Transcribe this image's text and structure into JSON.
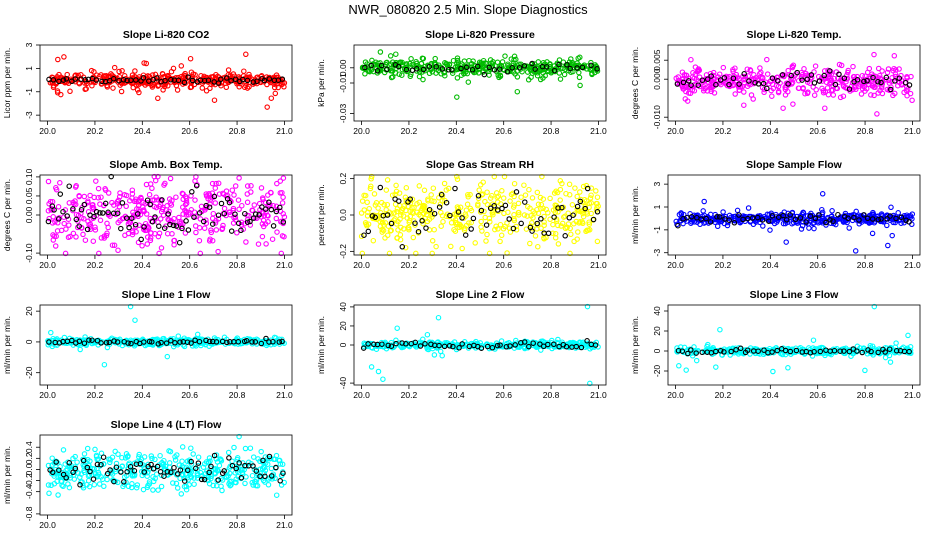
{
  "page": {
    "title": "NWR_080820  2.5 Min. Slope Diagnostics"
  },
  "chart_data": [
    {
      "type": "scatter",
      "title": "Slope Li-820 CO2",
      "ylabel": "Licor ppm per min.",
      "xlim": [
        20.0,
        21.0
      ],
      "ylim": [
        -3.5,
        3.0
      ],
      "x_ticks": [
        "20.0",
        "20.2",
        "20.4",
        "20.6",
        "20.8",
        "21.0"
      ],
      "y_ticks": [
        {
          "v": -3,
          "label": "-3"
        },
        {
          "v": -1,
          "label": "-1"
        },
        {
          "v": 1,
          "label": "1"
        },
        {
          "v": 3,
          "label": "3"
        }
      ],
      "color": "#ff0000",
      "sim": {
        "n": 420,
        "main_sd": 0.28,
        "main_off": 0.0,
        "out_frac": 0.12,
        "out_sd": 1.0,
        "out_off": 0.0,
        "black_n": 55,
        "black_sd": 0.12,
        "black_off": 0.0,
        "seed": 11
      }
    },
    {
      "type": "scatter",
      "title": "Slope Li-820 Pressure",
      "ylabel": "kPa per min.",
      "xlim": [
        20.0,
        21.0
      ],
      "ylim": [
        -0.035,
        0.015
      ],
      "x_ticks": [
        "20.0",
        "20.2",
        "20.4",
        "20.6",
        "20.8",
        "21.0"
      ],
      "y_ticks": [
        {
          "v": -0.03,
          "label": "-0.03"
        },
        {
          "v": -0.01,
          "label": "-0.01"
        },
        {
          "v": 0.0,
          "label": "0.00"
        }
      ],
      "color": "#00bb00",
      "sim": {
        "n": 380,
        "main_sd": 0.0025,
        "main_off": 0.0,
        "out_frac": 0.1,
        "out_sd": 0.007,
        "out_off": 0.0,
        "black_n": 40,
        "black_sd": 0.0015,
        "black_off": 0.0,
        "seed": 23
      }
    },
    {
      "type": "scatter",
      "title": "Slope Li-820 Temp.",
      "ylabel": "degrees C per min.",
      "xlim": [
        20.0,
        21.0
      ],
      "ylim": [
        -0.011,
        0.009
      ],
      "x_ticks": [
        "20.0",
        "20.2",
        "20.4",
        "20.6",
        "20.8",
        "21.0"
      ],
      "y_ticks": [
        {
          "v": -0.01,
          "label": "-0.010"
        },
        {
          "v": 0.0,
          "label": "0.000"
        },
        {
          "v": 0.005,
          "label": "0.005"
        }
      ],
      "color": "#ff00ff",
      "sim": {
        "n": 400,
        "main_sd": 0.0018,
        "main_off": -0.0005,
        "out_frac": 0.08,
        "out_sd": 0.004,
        "out_off": 0.0,
        "black_n": 50,
        "black_sd": 0.0012,
        "black_off": -0.0004,
        "seed": 37
      }
    },
    {
      "type": "scatter",
      "title": "Slope Amb. Box Temp.",
      "ylabel": "degrees C per min.",
      "xlim": [
        20.0,
        21.0
      ],
      "ylim": [
        -0.105,
        0.105
      ],
      "x_ticks": [
        "20.0",
        "20.2",
        "20.4",
        "20.6",
        "20.8",
        "21.0"
      ],
      "y_ticks": [
        {
          "v": -0.1,
          "label": "-0.10"
        },
        {
          "v": 0.0,
          "label": "0.00"
        },
        {
          "v": 0.05,
          "label": "0.05"
        },
        {
          "v": 0.1,
          "label": "0.10"
        }
      ],
      "color": "#ff00ff",
      "sim": {
        "n": 420,
        "main_sd": 0.045,
        "main_off": 0.0,
        "out_frac": 0.05,
        "out_sd": 0.06,
        "out_off": 0.0,
        "black_n": 80,
        "black_sd": 0.03,
        "black_off": 0.0,
        "seed": 51
      }
    },
    {
      "type": "scatter",
      "title": "Slope Gas Stream RH",
      "ylabel": "percent per min.",
      "xlim": [
        20.0,
        21.0
      ],
      "ylim": [
        -0.22,
        0.22
      ],
      "x_ticks": [
        "20.0",
        "20.2",
        "20.4",
        "20.6",
        "20.8",
        "21.0"
      ],
      "y_ticks": [
        {
          "v": -0.2,
          "label": "-0.2"
        },
        {
          "v": 0.0,
          "label": "0.0"
        },
        {
          "v": 0.2,
          "label": "0.2"
        }
      ],
      "color": "#ffff00",
      "sim": {
        "n": 420,
        "main_sd": 0.085,
        "main_off": 0.0,
        "out_frac": 0.05,
        "out_sd": 0.1,
        "out_off": 0.0,
        "black_n": 60,
        "black_sd": 0.07,
        "black_off": 0.0,
        "seed": 67
      }
    },
    {
      "type": "scatter",
      "title": "Slope Sample Flow",
      "ylabel": "ml/min per min.",
      "xlim": [
        20.0,
        21.0
      ],
      "ylim": [
        -3.2,
        3.8
      ],
      "x_ticks": [
        "20.0",
        "20.2",
        "20.4",
        "20.6",
        "20.8",
        "21.0"
      ],
      "y_ticks": [
        {
          "v": -3,
          "label": "-3"
        },
        {
          "v": -1,
          "label": "-1"
        },
        {
          "v": 1,
          "label": "1"
        },
        {
          "v": 3,
          "label": "3"
        }
      ],
      "color": "#0000ff",
      "sim": {
        "n": 400,
        "main_sd": 0.25,
        "main_off": 0.0,
        "out_frac": 0.06,
        "out_sd": 1.2,
        "out_off": 0.0,
        "black_n": 50,
        "black_sd": 0.2,
        "black_off": 0.0,
        "seed": 79
      }
    },
    {
      "type": "scatter",
      "title": "Slope Line 1 Flow",
      "ylabel": "ml/min per min.",
      "xlim": [
        20.0,
        21.0
      ],
      "ylim": [
        -28,
        24
      ],
      "x_ticks": [
        "20.0",
        "20.2",
        "20.4",
        "20.6",
        "20.8",
        "21.0"
      ],
      "y_ticks": [
        {
          "v": -20,
          "label": "-20"
        },
        {
          "v": 0,
          "label": "0"
        },
        {
          "v": 20,
          "label": "20"
        }
      ],
      "color": "#00ffff",
      "sim": {
        "n": 360,
        "main_sd": 1.2,
        "main_off": 0.0,
        "out_frac": 0.04,
        "out_sd": 12,
        "out_off": 0.0,
        "black_n": 55,
        "black_sd": 0.6,
        "black_off": 0.0,
        "seed": 91
      }
    },
    {
      "type": "scatter",
      "title": "Slope Line 2 Flow",
      "ylabel": "ml/min per min.",
      "xlim": [
        20.0,
        21.0
      ],
      "ylim": [
        -42,
        42
      ],
      "x_ticks": [
        "20.0",
        "20.2",
        "20.4",
        "20.6",
        "20.8",
        "21.0"
      ],
      "y_ticks": [
        {
          "v": -40,
          "label": "-40"
        },
        {
          "v": 0,
          "label": "0"
        },
        {
          "v": 20,
          "label": "20"
        },
        {
          "v": 40,
          "label": "40"
        }
      ],
      "color": "#00ffff",
      "sim": {
        "n": 360,
        "main_sd": 1.8,
        "main_off": 0.0,
        "out_frac": 0.05,
        "out_sd": 20,
        "out_off": 0.0,
        "black_n": 50,
        "black_sd": 1.5,
        "black_off": 0.0,
        "seed": 103
      }
    },
    {
      "type": "scatter",
      "title": "Slope Line 3 Flow",
      "ylabel": "ml/min per min.",
      "xlim": [
        20.0,
        21.0
      ],
      "ylim": [
        -34,
        46
      ],
      "x_ticks": [
        "20.0",
        "20.2",
        "20.4",
        "20.6",
        "20.8",
        "21.0"
      ],
      "y_ticks": [
        {
          "v": -20,
          "label": "-20"
        },
        {
          "v": 0,
          "label": "0"
        },
        {
          "v": 20,
          "label": "20"
        },
        {
          "v": 40,
          "label": "40"
        }
      ],
      "color": "#00ffff",
      "sim": {
        "n": 360,
        "main_sd": 1.8,
        "main_off": 0.0,
        "out_frac": 0.03,
        "out_sd": 15,
        "out_off": 0.0,
        "black_n": 50,
        "black_sd": 1.2,
        "black_off": 0.0,
        "seed": 117
      }
    },
    {
      "type": "scatter",
      "title": "Slope Line 4 (LT) Flow",
      "ylabel": "ml/min per min.",
      "xlim": [
        20.0,
        21.0
      ],
      "ylim": [
        -0.82,
        0.62
      ],
      "x_ticks": [
        "20.0",
        "20.2",
        "20.4",
        "20.6",
        "20.8",
        "21.0"
      ],
      "y_ticks": [
        {
          "v": -0.8,
          "label": "-0.8"
        },
        {
          "v": -0.4,
          "label": "-0.4"
        },
        {
          "v": -0.2,
          "label": "-0.2"
        },
        {
          "v": 0.0,
          "label": "0.0"
        },
        {
          "v": 0.2,
          "label": "0.2"
        },
        {
          "v": 0.4,
          "label": "0.4"
        }
      ],
      "color": "#00ffff",
      "sim": {
        "n": 420,
        "main_sd": 0.17,
        "main_off": -0.02,
        "out_frac": 0.04,
        "out_sd": 0.3,
        "out_off": 0.0,
        "black_n": 70,
        "black_sd": 0.12,
        "black_off": 0.0,
        "seed": 131
      }
    }
  ]
}
